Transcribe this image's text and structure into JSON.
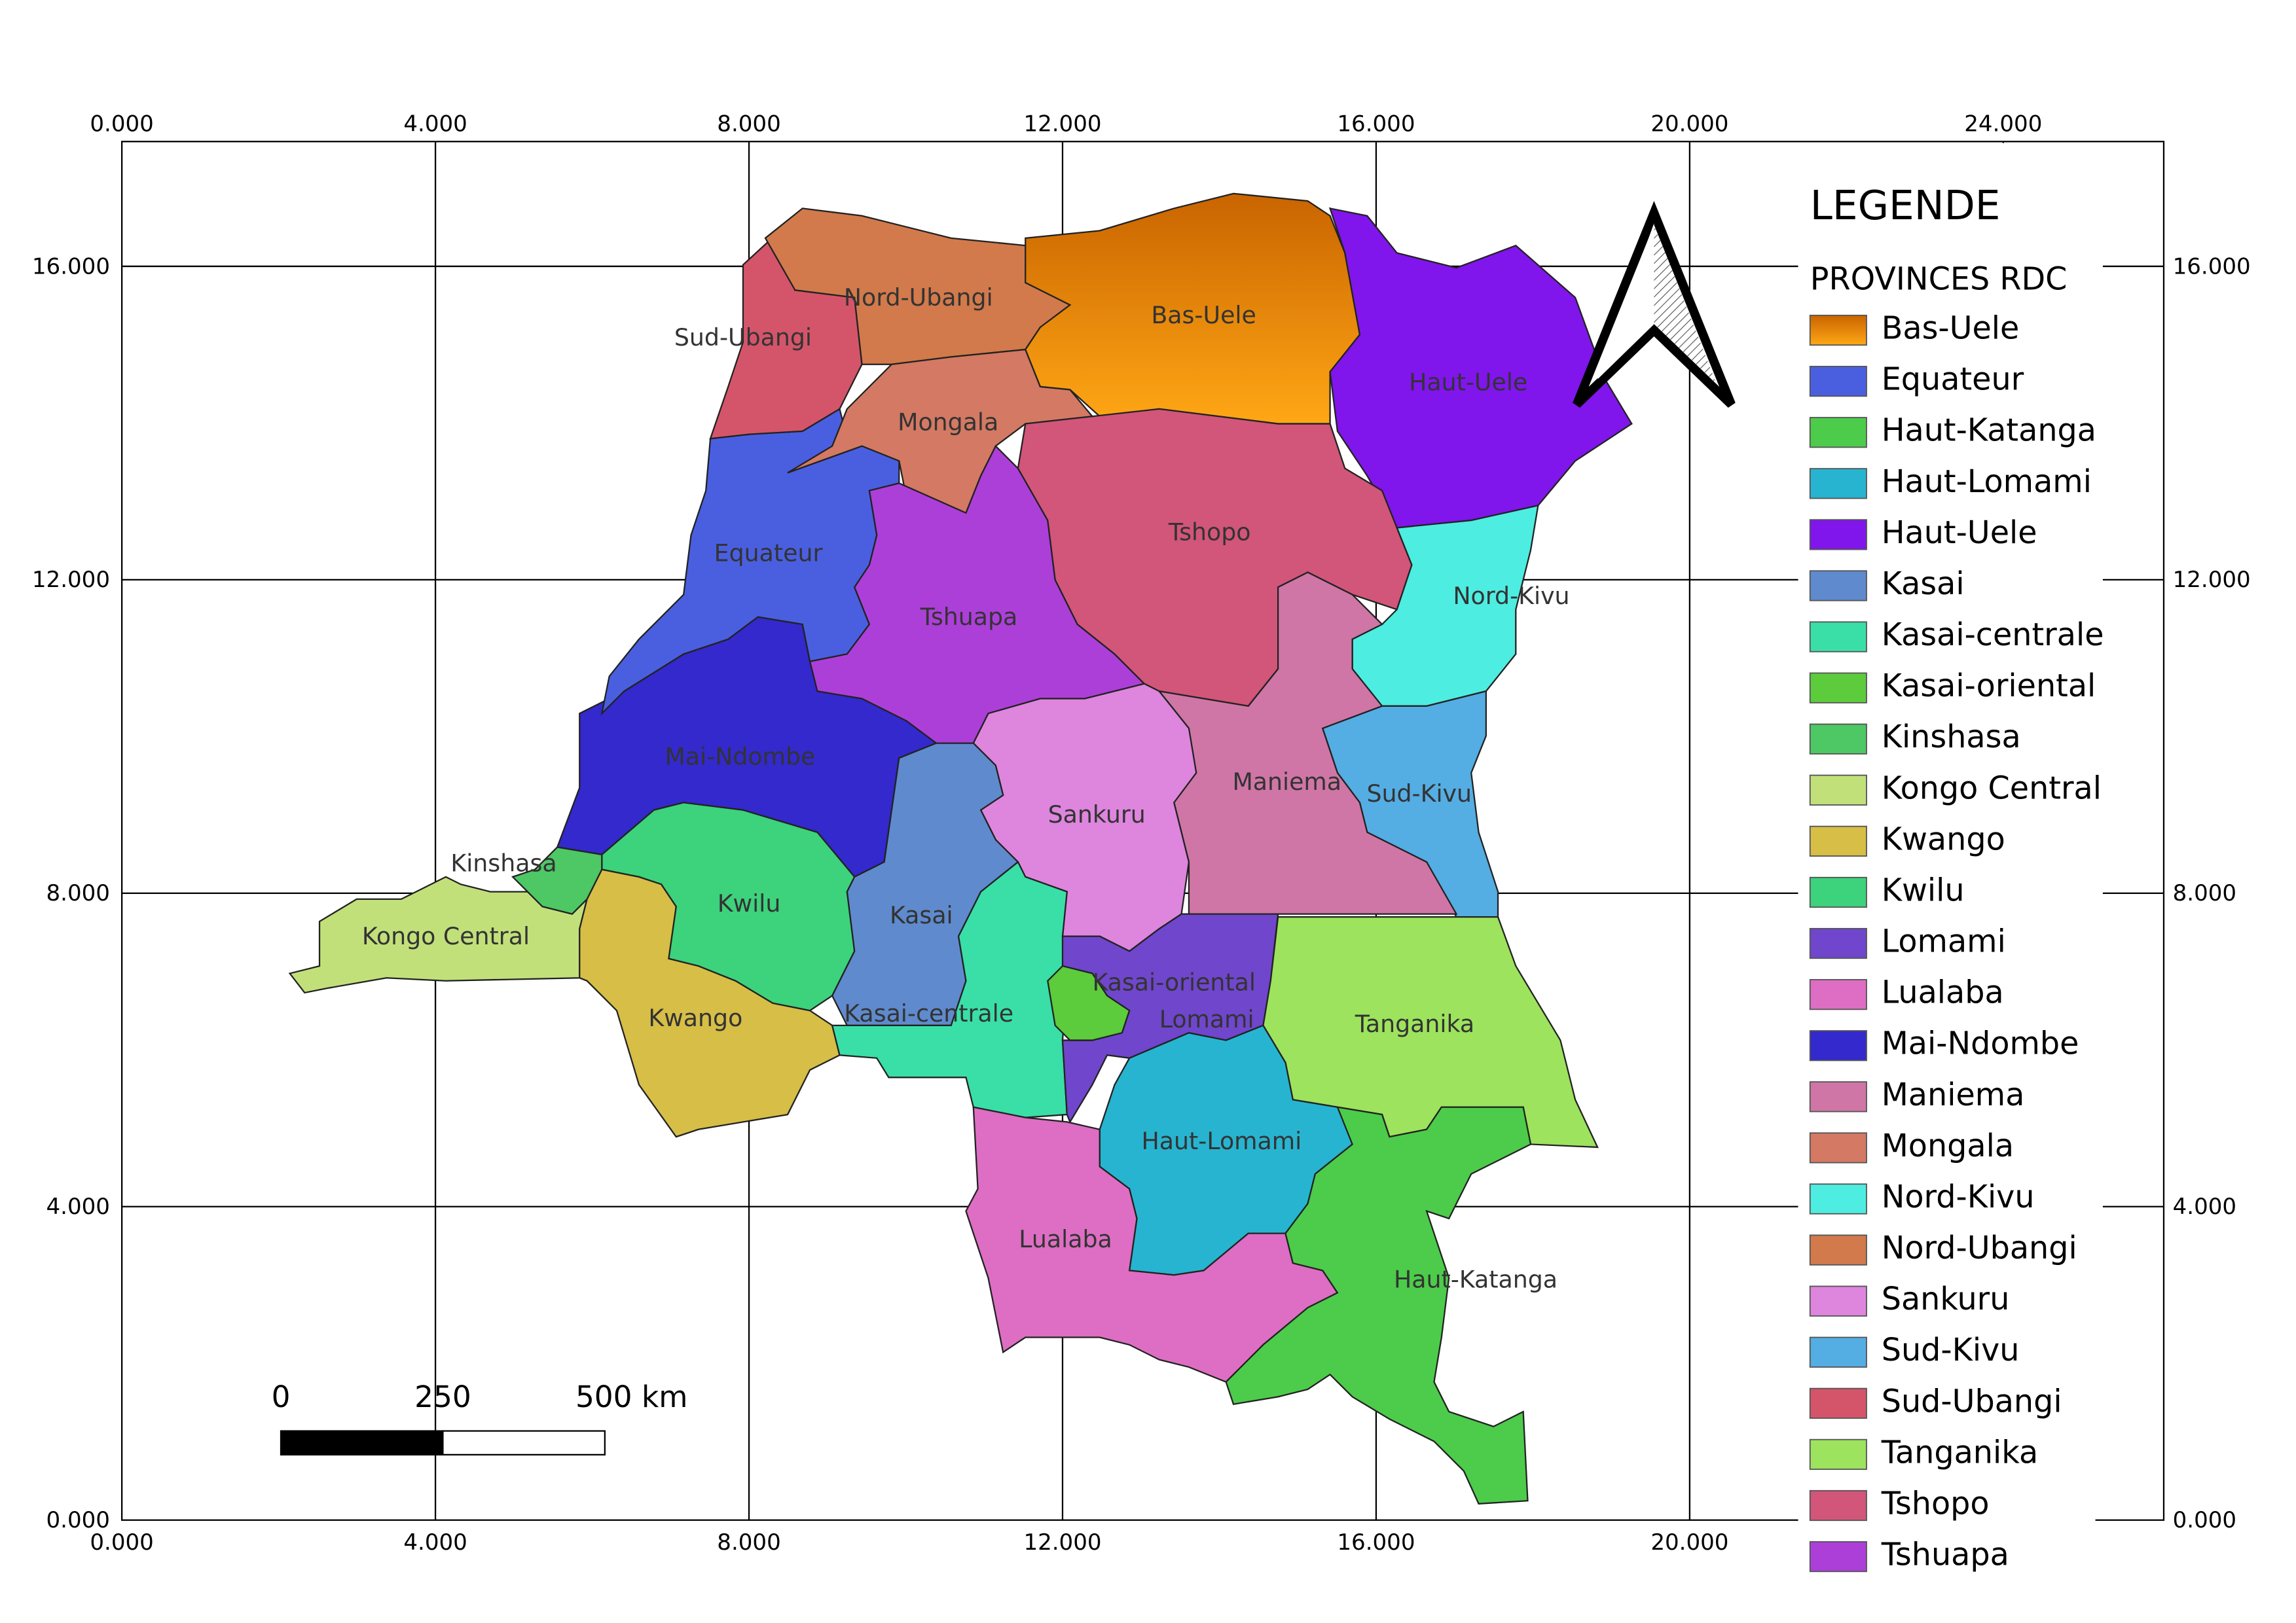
{
  "map": {
    "legend_title": "LEGENDE",
    "layer_title": "PROVINCES RDC",
    "provinces": [
      {
        "name": "Bas-Uele",
        "color": "#f29a12"
      },
      {
        "name": "Equateur",
        "color": "#4a5fe0"
      },
      {
        "name": "Haut-Katanga",
        "color": "#4ccc4a"
      },
      {
        "name": "Haut-Lomami",
        "color": "#27b4d0"
      },
      {
        "name": "Haut-Uele",
        "color": "#8015ec"
      },
      {
        "name": "Kasai",
        "color": "#5f8acd"
      },
      {
        "name": "Kasai-centrale",
        "color": "#39dfa7"
      },
      {
        "name": "Kasai-oriental",
        "color": "#5ccb3c"
      },
      {
        "name": "Kinshasa",
        "color": "#4ec765"
      },
      {
        "name": "Kongo Central",
        "color": "#c2e07a"
      },
      {
        "name": "Kwango",
        "color": "#d6be47"
      },
      {
        "name": "Kwilu",
        "color": "#3dd27c"
      },
      {
        "name": "Lomami",
        "color": "#6f46cc"
      },
      {
        "name": "Lualaba",
        "color": "#dd6ec3"
      },
      {
        "name": "Mai-Ndombe",
        "color": "#3329cc"
      },
      {
        "name": "Maniema",
        "color": "#cf76a6"
      },
      {
        "name": "Mongala",
        "color": "#d47963"
      },
      {
        "name": "Nord-Kivu",
        "color": "#4eede1"
      },
      {
        "name": "Nord-Ubangi",
        "color": "#d27a4b"
      },
      {
        "name": "Sankuru",
        "color": "#de85de"
      },
      {
        "name": "Sud-Kivu",
        "color": "#54ade3"
      },
      {
        "name": "Sud-Ubangi",
        "color": "#d4556a"
      },
      {
        "name": "Tanganika",
        "color": "#9de35d"
      },
      {
        "name": "Tshopo",
        "color": "#d2557a"
      },
      {
        "name": "Tshuapa",
        "color": "#ad3fd9"
      }
    ],
    "grid": {
      "top": [
        "0.000",
        "4.000",
        "8.000",
        "12.000",
        "16.000",
        "20.000",
        "24.000"
      ],
      "bottom": [
        "0.000",
        "4.000",
        "8.000",
        "12.000",
        "16.000",
        "20.000"
      ],
      "left": [
        "0.000",
        "4.000",
        "8.000",
        "12.000",
        "16.000"
      ],
      "right": [
        "0.000",
        "4.000",
        "8.000",
        "12.000",
        "16.000"
      ]
    },
    "scale_bar": {
      "labels": [
        "0",
        "250",
        "500 km"
      ]
    }
  }
}
